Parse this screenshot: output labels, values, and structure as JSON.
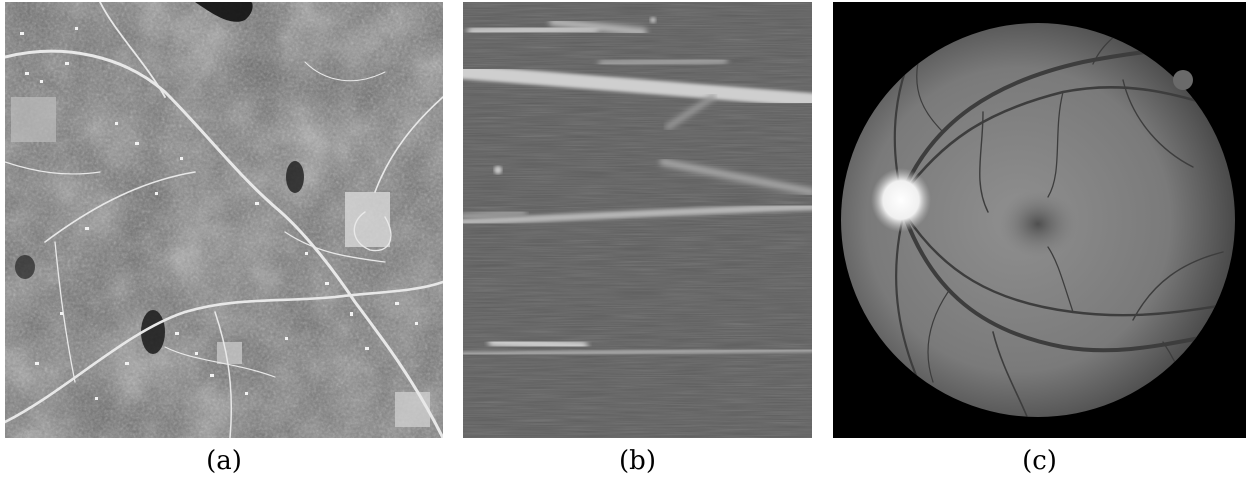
{
  "figure": {
    "panels": [
      {
        "label": "(a)",
        "content": "aerial-image"
      },
      {
        "label": "(b)",
        "content": "fiber-image"
      },
      {
        "label": "(c)",
        "content": "retina-fundus-image"
      }
    ]
  }
}
